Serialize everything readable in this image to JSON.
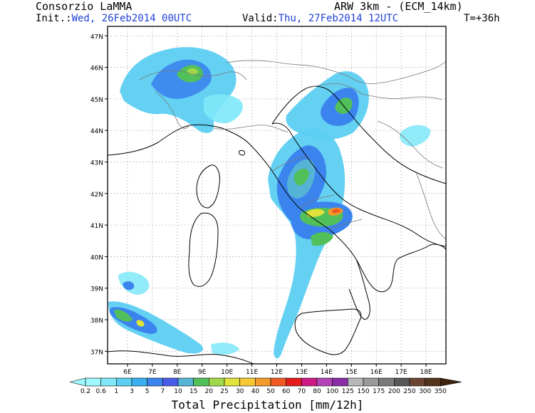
{
  "header": {
    "org": "Consorzio LaMMA",
    "model": "ARW 3km - (ECM_14km)",
    "init_label": "Init.:",
    "init_value": "Wed, 26Feb2014 00UTC",
    "valid_label": "Valid:",
    "valid_value": "Thu, 27Feb2014 12UTC",
    "lead": "T=+36h"
  },
  "map": {
    "lat_labels": [
      "37N",
      "38N",
      "39N",
      "40N",
      "41N",
      "42N",
      "43N",
      "44N",
      "45N",
      "46N",
      "47N"
    ],
    "lat_values": [
      37,
      38,
      39,
      40,
      41,
      42,
      43,
      44,
      45,
      46,
      47
    ],
    "lon_labels": [
      "6E",
      "7E",
      "8E",
      "9E",
      "10E",
      "11E",
      "12E",
      "13E",
      "14E",
      "15E",
      "16E",
      "17E",
      "18E"
    ],
    "lon_values": [
      6,
      7,
      8,
      9,
      10,
      11,
      12,
      13,
      14,
      15,
      16,
      17,
      18
    ],
    "lat_range": [
      36.6,
      47.3
    ],
    "lon_range": [
      5.2,
      18.8
    ]
  },
  "legend": {
    "title": "Total Precipitation [mm/12h]",
    "values": [
      "0.2",
      "0.6",
      "1",
      "3",
      "5",
      "7",
      "10",
      "15",
      "20",
      "25",
      "30",
      "40",
      "50",
      "60",
      "70",
      "80",
      "100",
      "125",
      "150",
      "175",
      "200",
      "250",
      "300",
      "350"
    ],
    "colors": [
      "#a0f8ff",
      "#7ee8f8",
      "#5ccff2",
      "#3aaff0",
      "#3b84ee",
      "#4a5ce8",
      "#55b3d6",
      "#52c05a",
      "#9fd84a",
      "#e2e23c",
      "#f7c832",
      "#f39a2a",
      "#ef5b22",
      "#e41c1c",
      "#cf1a86",
      "#b344b7",
      "#8a2ea7",
      "#b8b8b8",
      "#999999",
      "#7a7a7a",
      "#585858",
      "#6a4630",
      "#55341c",
      "#3d2410"
    ]
  }
}
